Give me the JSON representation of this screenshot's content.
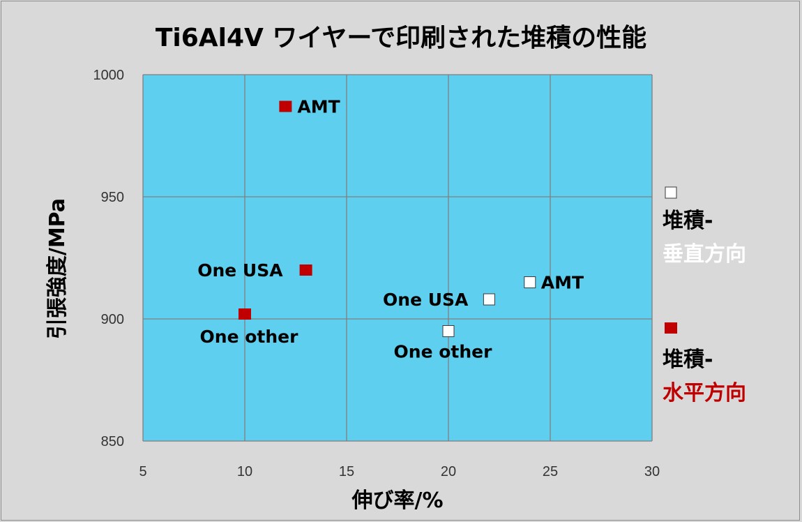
{
  "chart_data": {
    "type": "scatter",
    "title": "Ti6Al4V ワイヤーで印刷された堆積の性能",
    "xlabel": "伸び率/%",
    "ylabel": "引張強度/MPa",
    "xlim": [
      5,
      30
    ],
    "ylim": [
      850,
      1000
    ],
    "xticks": [
      "5",
      "10",
      "15",
      "20",
      "25",
      "30"
    ],
    "yticks": [
      "850",
      "900",
      "950",
      "1000"
    ],
    "grid": true,
    "legend_position": "right",
    "colors": {
      "plot_bg": "#5ecfef",
      "frame_bg": "#d9d9d9",
      "grid": "#7f7f7f",
      "horizontal": "#c00000",
      "vertical": "#ffffff"
    },
    "series": [
      {
        "legend_line1": "堆積-",
        "legend_line2": "垂直方向",
        "marker": "square-white",
        "points": [
          {
            "x": 24,
            "y": 915,
            "label": "AMT"
          },
          {
            "x": 22,
            "y": 908,
            "label": "One USA"
          },
          {
            "x": 20,
            "y": 895,
            "label": "One other"
          }
        ]
      },
      {
        "legend_line1": "堆積-",
        "legend_line2": "水平方向",
        "marker": "square-red",
        "points": [
          {
            "x": 12,
            "y": 987,
            "label": "AMT"
          },
          {
            "x": 13,
            "y": 920,
            "label": "One USA"
          },
          {
            "x": 10,
            "y": 902,
            "label": "One other"
          }
        ]
      }
    ]
  }
}
